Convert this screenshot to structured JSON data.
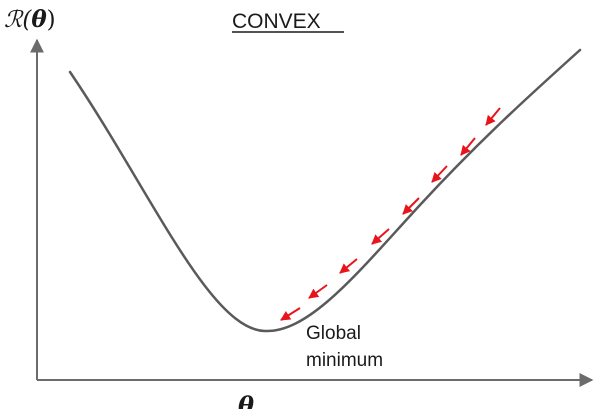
{
  "diagram": {
    "title": "CONVEX",
    "y_axis_label": {
      "prefix": "ℛ(",
      "symbol": "θ",
      "suffix": ")"
    },
    "x_axis_label": "θ",
    "annotation": {
      "line1": "Global",
      "line2": "minimum"
    },
    "colors": {
      "axis": "#6b6b6b",
      "curve": "#5a5a5a",
      "arrows": "#e8141b",
      "text": "#1a1a1a"
    },
    "arrow_count": 8
  }
}
